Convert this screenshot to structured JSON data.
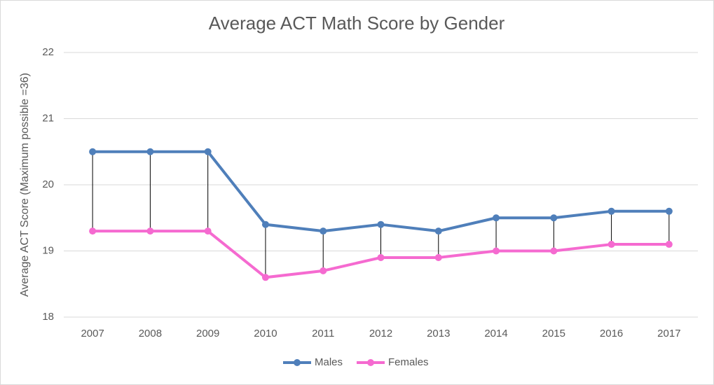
{
  "chart_data": {
    "type": "line",
    "title": "Average ACT Math Score by Gender",
    "y_label": "Average ACT Score (Maximum possible =36)",
    "categories": [
      "2007",
      "2008",
      "2009",
      "2010",
      "2011",
      "2012",
      "2013",
      "2014",
      "2015",
      "2016",
      "2017"
    ],
    "series": [
      {
        "name": "Males",
        "color": "#4f7fba",
        "values": [
          20.5,
          20.5,
          20.5,
          19.4,
          19.3,
          19.4,
          19.3,
          19.5,
          19.5,
          19.6,
          19.6
        ]
      },
      {
        "name": "Females",
        "color": "#f56ad0",
        "values": [
          19.3,
          19.3,
          19.3,
          18.6,
          18.7,
          18.9,
          18.9,
          19.0,
          19.0,
          19.1,
          19.1
        ]
      }
    ],
    "ylim": [
      18,
      22
    ],
    "yticks": [
      18,
      19,
      20,
      21,
      22
    ],
    "grid": true,
    "high_low_lines": true,
    "legend": "bottom"
  }
}
